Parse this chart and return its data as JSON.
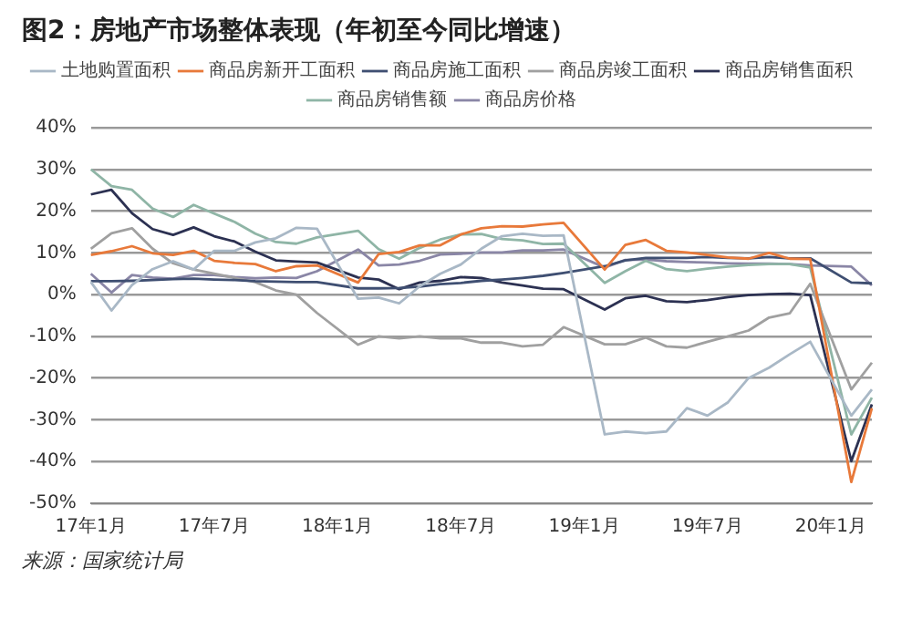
{
  "chart_data": {
    "type": "line",
    "title": "图2：房地产市场整体表现（年初至今同比增速）",
    "categories": [
      "17年1月",
      null,
      null,
      null,
      null,
      null,
      "17年7月",
      null,
      null,
      null,
      null,
      null,
      "18年1月",
      null,
      null,
      null,
      null,
      null,
      "18年7月",
      null,
      null,
      null,
      null,
      null,
      "19年1月",
      null,
      null,
      null,
      null,
      null,
      "19年7月",
      null,
      null,
      null,
      null,
      null,
      "20年1月",
      null,
      null
    ],
    "series": [
      {
        "name": "土地购置面积",
        "color": "#a9b8c6",
        "values": [
          3,
          -3.8,
          2.3,
          6.1,
          8,
          6,
          10.5,
          10.5,
          12.5,
          13.5,
          16,
          15.8,
          null,
          -1,
          -0.7,
          -2.1,
          2,
          5,
          7.2,
          11,
          14,
          14.6,
          14.1,
          14.2,
          null,
          -33.5,
          -32.8,
          -33.2,
          -32.8,
          -27.2,
          -29,
          -25.8,
          -20,
          -17.5,
          -14.3,
          -11.3,
          null,
          -29,
          -22.7
        ]
      },
      {
        "name": "商品房新开工面积",
        "color": "#e8793a",
        "values": [
          9.5,
          10.4,
          11.6,
          9.9,
          9.5,
          10.5,
          8.1,
          7.6,
          7.3,
          5.6,
          6.8,
          7,
          null,
          2.9,
          9.7,
          10.2,
          11.8,
          11.8,
          14.4,
          15.9,
          16.4,
          16.3,
          16.8,
          17.2,
          null,
          6,
          11.9,
          13.1,
          10.5,
          10.1,
          9.5,
          8.9,
          8.6,
          10,
          8.6,
          8.5,
          null,
          -44.9,
          -27.2
        ]
      },
      {
        "name": "商品房施工面积",
        "color": "#3f4f72",
        "values": [
          3.2,
          3.2,
          3.3,
          3.5,
          3.7,
          3.8,
          3.6,
          3.5,
          3.2,
          3.1,
          3,
          3,
          null,
          1.5,
          1.5,
          1.6,
          1.9,
          2.5,
          2.8,
          3.3,
          3.6,
          4,
          4.5,
          5.2,
          null,
          6.8,
          8.2,
          8.8,
          8.8,
          8.8,
          9,
          8.8,
          8.7,
          9,
          8.7,
          8.7,
          null,
          2.9,
          2.7
        ]
      },
      {
        "name": "商品房竣工面积",
        "color": "#a0a0a0",
        "values": [
          11,
          14.7,
          15.9,
          11,
          7.5,
          6,
          5,
          4,
          3,
          1,
          0,
          -4.4,
          null,
          -12,
          -10,
          -10.5,
          -10,
          -10.5,
          -10.5,
          -11.5,
          -11.5,
          -12.4,
          -12,
          -7.8,
          null,
          -11.9,
          -11.9,
          -10.3,
          -12.4,
          -12.7,
          -11.3,
          -10,
          -8.6,
          -5.5,
          -4.5,
          2.6,
          null,
          -22.7,
          -16.3
        ]
      },
      {
        "name": "商品房销售面积",
        "color": "#2c3152",
        "values": [
          24,
          25.1,
          19.5,
          15.7,
          14.3,
          16.1,
          14,
          12.7,
          10.3,
          8.2,
          7.9,
          7.7,
          null,
          4.1,
          3.6,
          1.3,
          2.9,
          3.3,
          4.2,
          4,
          2.9,
          2.2,
          1.4,
          1.3,
          null,
          -3.6,
          -0.9,
          -0.3,
          -1.6,
          -1.8,
          -1.3,
          -0.6,
          -0.1,
          0.1,
          0.2,
          -0.1,
          null,
          -39.9,
          -26.3
        ]
      },
      {
        "name": "商品房销售额",
        "color": "#8fb5a6",
        "values": [
          30,
          26,
          25.1,
          20.6,
          18.6,
          21.5,
          19.4,
          17.4,
          14.6,
          12.6,
          12.2,
          13.7,
          null,
          15.3,
          10.9,
          8.6,
          11.2,
          13.2,
          14.4,
          14.5,
          13.3,
          13,
          12.1,
          12.2,
          null,
          2.8,
          5.6,
          8.1,
          6.1,
          5.6,
          6.2,
          6.7,
          7.1,
          7.3,
          7.3,
          6.5,
          null,
          -33.5,
          -24.7
        ]
      },
      {
        "name": "商品房价格",
        "color": "#8a86a6",
        "values": [
          5,
          0.5,
          4.7,
          4.1,
          3.8,
          4.7,
          4.7,
          4.2,
          3.9,
          4.1,
          4,
          5.6,
          null,
          10.8,
          7,
          7.2,
          8.1,
          9.6,
          9.8,
          10.1,
          10.1,
          10.6,
          10.6,
          10.8,
          null,
          6.5,
          8.3,
          8.4,
          8,
          7.8,
          7.7,
          7.5,
          7.4,
          7.4,
          7.3,
          7,
          null,
          6.7,
          2.2
        ]
      }
    ],
    "ylim": [
      -50,
      40
    ],
    "yticks": [
      {
        "value": -50,
        "label": "-50%"
      },
      {
        "value": -40,
        "label": "-40%"
      },
      {
        "value": -30,
        "label": "-30%"
      },
      {
        "value": -20,
        "label": "-20%"
      },
      {
        "value": -10,
        "label": "-10%"
      },
      {
        "value": 0,
        "label": "0%"
      },
      {
        "value": 10,
        "label": "10%"
      },
      {
        "value": 20,
        "label": "20%"
      },
      {
        "value": 30,
        "label": "30%"
      },
      {
        "value": 40,
        "label": "40%"
      }
    ],
    "grid": "y",
    "legend": "top",
    "marker": "none",
    "line_style": "solid",
    "annotations": [
      "来源：国家统计局"
    ]
  }
}
